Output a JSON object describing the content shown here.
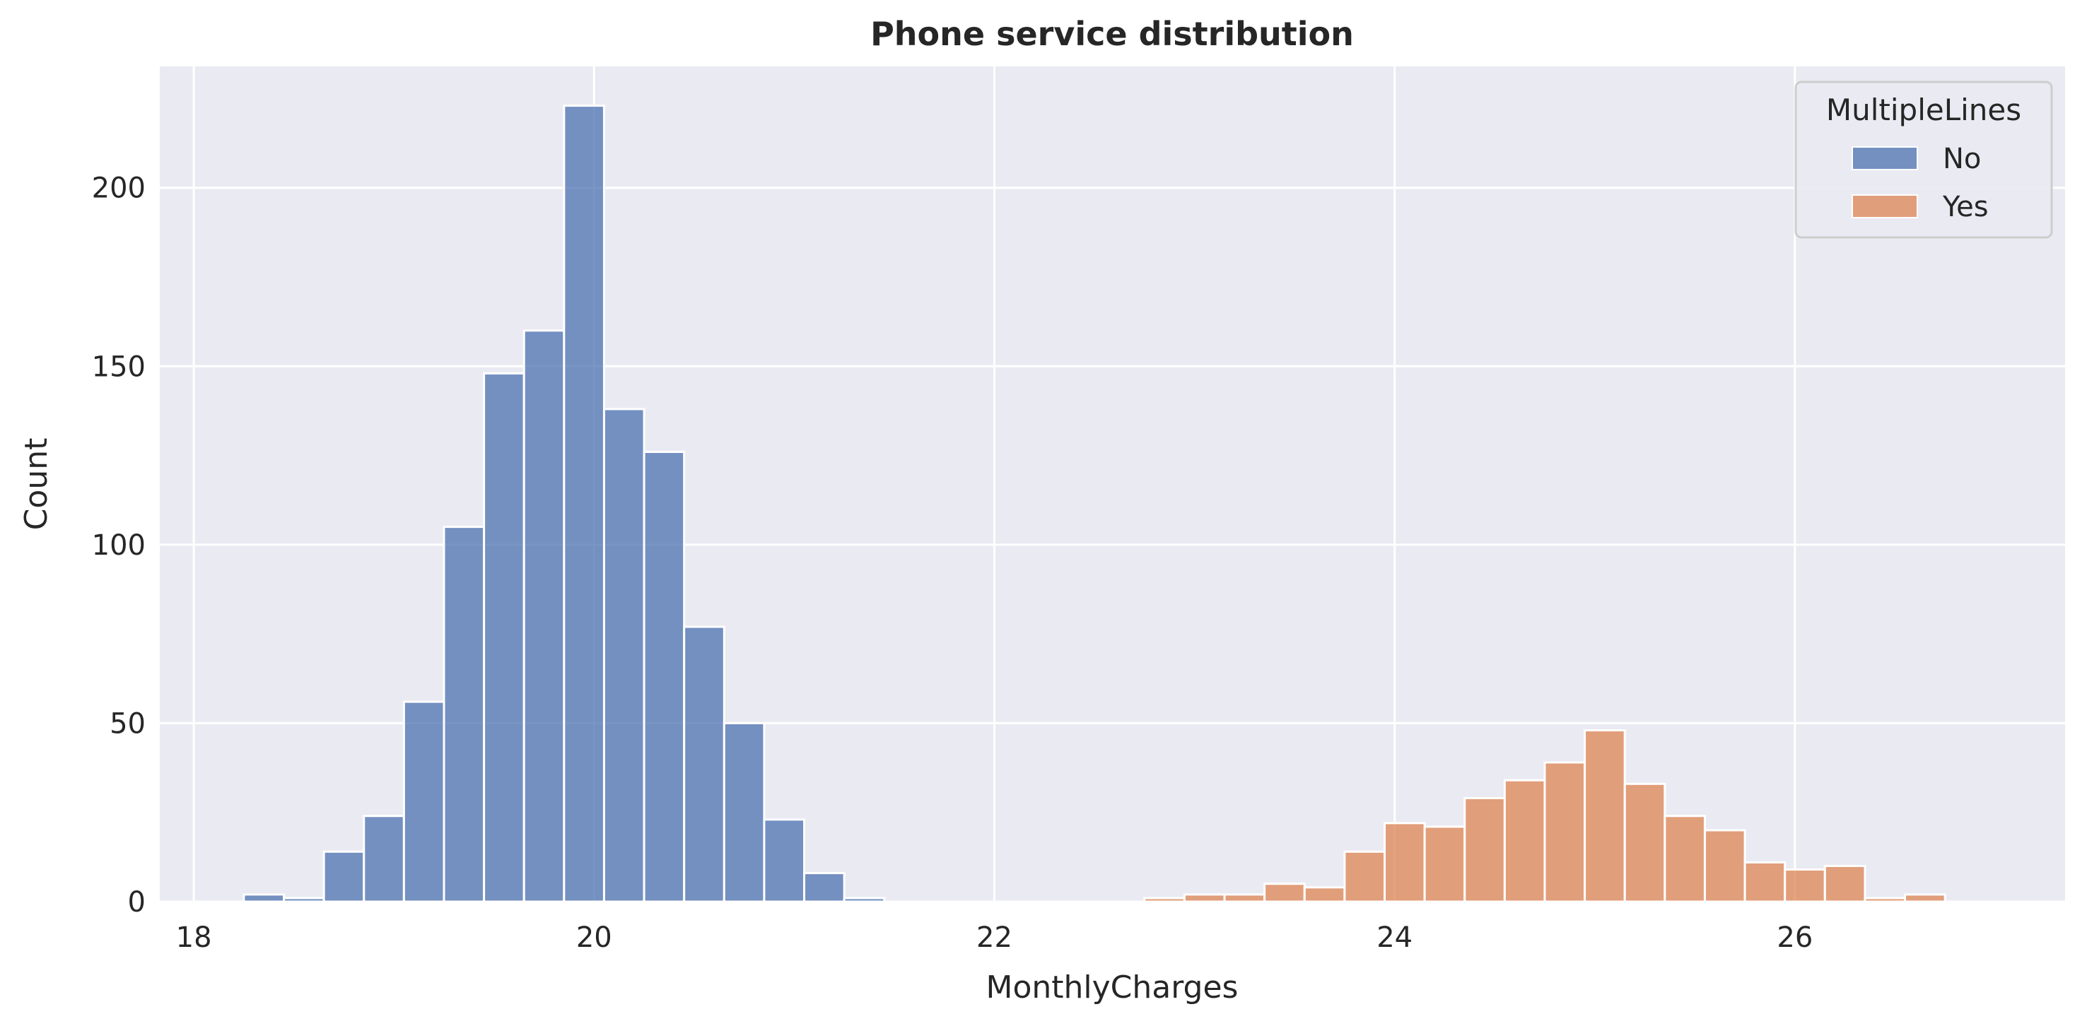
{
  "chart_data": {
    "type": "bar",
    "title": "Phone service distribution",
    "xlabel": "MonthlyCharges",
    "ylabel": "Count",
    "xlim": [
      17.83,
      27.35
    ],
    "ylim": [
      0,
      234
    ],
    "xticks": [
      18,
      20,
      22,
      24,
      26
    ],
    "yticks": [
      0,
      50,
      100,
      150,
      200
    ],
    "grid": true,
    "bin_width": 0.2,
    "legend": {
      "title": "MultipleLines",
      "placement": "top-right",
      "entries": [
        {
          "label": "No",
          "color": "#4c72b0"
        },
        {
          "label": "Yes",
          "color": "#dd8452"
        }
      ]
    },
    "series": [
      {
        "name": "No",
        "color": "#4c72b0",
        "bins": [
          {
            "x0": 18.25,
            "count": 2
          },
          {
            "x0": 18.45,
            "count": 1
          },
          {
            "x0": 18.65,
            "count": 14
          },
          {
            "x0": 18.85,
            "count": 24
          },
          {
            "x0": 19.05,
            "count": 56
          },
          {
            "x0": 19.25,
            "count": 105
          },
          {
            "x0": 19.45,
            "count": 148
          },
          {
            "x0": 19.65,
            "count": 160
          },
          {
            "x0": 19.85,
            "count": 223
          },
          {
            "x0": 20.05,
            "count": 138
          },
          {
            "x0": 20.25,
            "count": 126
          },
          {
            "x0": 20.45,
            "count": 77
          },
          {
            "x0": 20.65,
            "count": 50
          },
          {
            "x0": 20.85,
            "count": 23
          },
          {
            "x0": 21.05,
            "count": 8
          },
          {
            "x0": 21.25,
            "count": 1
          }
        ]
      },
      {
        "name": "Yes",
        "color": "#dd8452",
        "bins": [
          {
            "x0": 22.75,
            "count": 1
          },
          {
            "x0": 22.95,
            "count": 2
          },
          {
            "x0": 23.15,
            "count": 2
          },
          {
            "x0": 23.35,
            "count": 5
          },
          {
            "x0": 23.55,
            "count": 4
          },
          {
            "x0": 23.75,
            "count": 14
          },
          {
            "x0": 23.95,
            "count": 22
          },
          {
            "x0": 24.15,
            "count": 21
          },
          {
            "x0": 24.35,
            "count": 29
          },
          {
            "x0": 24.55,
            "count": 34
          },
          {
            "x0": 24.75,
            "count": 39
          },
          {
            "x0": 24.95,
            "count": 48
          },
          {
            "x0": 25.15,
            "count": 33
          },
          {
            "x0": 25.35,
            "count": 24
          },
          {
            "x0": 25.55,
            "count": 20
          },
          {
            "x0": 25.75,
            "count": 11
          },
          {
            "x0": 25.95,
            "count": 9
          },
          {
            "x0": 26.15,
            "count": 10
          },
          {
            "x0": 26.35,
            "count": 1
          },
          {
            "x0": 26.55,
            "count": 2
          }
        ]
      }
    ]
  }
}
